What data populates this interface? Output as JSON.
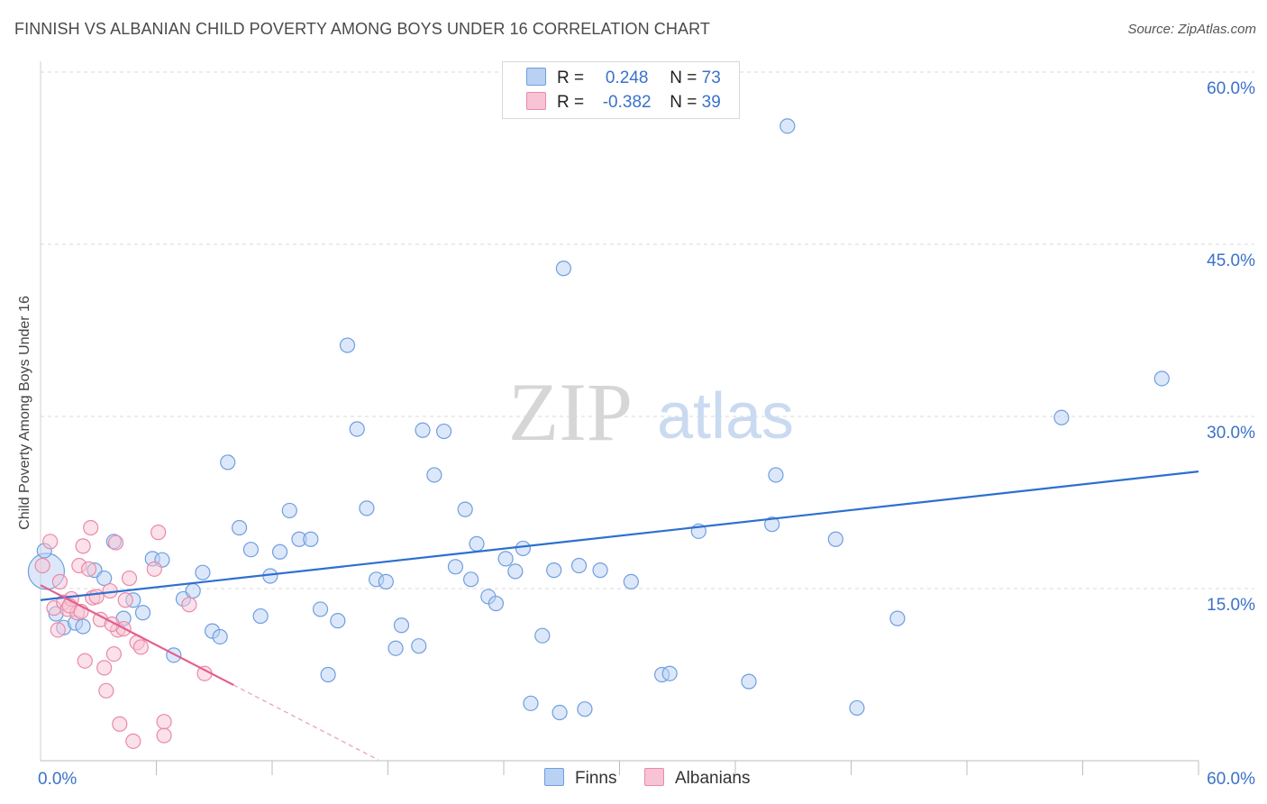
{
  "title": "FINNISH VS ALBANIAN CHILD POVERTY AMONG BOYS UNDER 16 CORRELATION CHART",
  "source": "Source: ZipAtlas.com",
  "watermark": {
    "zip": "ZIP",
    "atlas": "atlas"
  },
  "legend_top": {
    "rows": [
      {
        "r_label": "R =",
        "r_value": "0.248",
        "n_label": "N =",
        "n_value": "73"
      },
      {
        "r_label": "R =",
        "r_value": "-0.382",
        "n_label": "N =",
        "n_value": "39"
      }
    ]
  },
  "colors": {
    "finns_fill": "#b9d1f3",
    "finns_stroke": "#6f9ee0",
    "finns_line": "#2e6fcf",
    "albanians_fill": "#f8c3d4",
    "albanians_stroke": "#e98aa9",
    "albanians_line": "#e35f8c",
    "grid": "#d9d9d9",
    "axis_text": "#3a72c9"
  },
  "chart_data": {
    "type": "scatter",
    "title": "FINNISH VS ALBANIAN CHILD POVERTY AMONG BOYS UNDER 16 CORRELATION CHART",
    "xlabel": "",
    "ylabel": "Child Poverty Among Boys Under 16",
    "xlim": [
      0,
      60
    ],
    "ylim": [
      0,
      60
    ],
    "x_tick_labels": [
      "0.0%",
      "60.0%"
    ],
    "y_tick_labels": [
      "15.0%",
      "30.0%",
      "45.0%",
      "60.0%"
    ],
    "y_ticks": [
      15,
      30,
      45,
      60
    ],
    "legend_position": "bottom-center",
    "series": [
      {
        "name": "Finns",
        "R": 0.248,
        "N": 73,
        "trend": {
          "x0": 0,
          "y0": 14.0,
          "x1": 60,
          "y1": 25.2
        },
        "points": [
          [
            0.3,
            16.5
          ],
          [
            0.8,
            12.8
          ],
          [
            1.2,
            11.6
          ],
          [
            1.8,
            12.0
          ],
          [
            2.2,
            11.7
          ],
          [
            2.8,
            16.6
          ],
          [
            3.3,
            15.9
          ],
          [
            3.8,
            19.1
          ],
          [
            4.3,
            12.4
          ],
          [
            4.8,
            14.0
          ],
          [
            5.3,
            12.9
          ],
          [
            5.8,
            17.6
          ],
          [
            6.3,
            17.5
          ],
          [
            6.9,
            9.2
          ],
          [
            7.4,
            14.1
          ],
          [
            7.9,
            14.8
          ],
          [
            8.4,
            16.4
          ],
          [
            8.9,
            11.3
          ],
          [
            9.3,
            10.8
          ],
          [
            9.7,
            26.0
          ],
          [
            10.3,
            20.3
          ],
          [
            10.9,
            18.4
          ],
          [
            11.4,
            12.6
          ],
          [
            11.9,
            16.1
          ],
          [
            12.4,
            18.2
          ],
          [
            12.9,
            21.8
          ],
          [
            13.4,
            19.3
          ],
          [
            14.0,
            19.3
          ],
          [
            14.5,
            13.2
          ],
          [
            14.9,
            7.5
          ],
          [
            15.4,
            12.2
          ],
          [
            15.9,
            36.2
          ],
          [
            16.4,
            28.9
          ],
          [
            16.9,
            22.0
          ],
          [
            17.4,
            15.8
          ],
          [
            17.9,
            15.6
          ],
          [
            18.4,
            9.8
          ],
          [
            18.7,
            11.8
          ],
          [
            19.6,
            10.0
          ],
          [
            19.8,
            28.8
          ],
          [
            20.4,
            24.9
          ],
          [
            20.9,
            28.7
          ],
          [
            21.5,
            16.9
          ],
          [
            22.0,
            21.9
          ],
          [
            22.3,
            15.8
          ],
          [
            22.6,
            18.9
          ],
          [
            23.2,
            14.3
          ],
          [
            23.6,
            13.7
          ],
          [
            24.1,
            17.6
          ],
          [
            24.6,
            16.5
          ],
          [
            25.0,
            18.5
          ],
          [
            25.4,
            5.0
          ],
          [
            26.0,
            10.9
          ],
          [
            26.6,
            16.6
          ],
          [
            26.9,
            4.2
          ],
          [
            27.1,
            42.9
          ],
          [
            27.9,
            17.0
          ],
          [
            28.2,
            4.5
          ],
          [
            29.0,
            16.6
          ],
          [
            30.6,
            15.6
          ],
          [
            32.2,
            7.5
          ],
          [
            32.6,
            7.6
          ],
          [
            34.1,
            20.0
          ],
          [
            36.7,
            6.9
          ],
          [
            37.9,
            20.6
          ],
          [
            38.1,
            24.9
          ],
          [
            38.7,
            55.3
          ],
          [
            41.2,
            19.3
          ],
          [
            42.3,
            4.6
          ],
          [
            44.4,
            12.4
          ],
          [
            52.9,
            29.9
          ],
          [
            58.1,
            33.3
          ],
          [
            0.2,
            18.3
          ]
        ]
      },
      {
        "name": "Albanians",
        "R": -0.382,
        "N": 39,
        "trend": {
          "x0": 0,
          "y0": 15.3,
          "x1": 10,
          "y1": 6.6,
          "dash_to_x": 17.5
        },
        "points": [
          [
            0.1,
            17.0
          ],
          [
            0.5,
            19.1
          ],
          [
            0.7,
            13.3
          ],
          [
            0.9,
            11.4
          ],
          [
            1.2,
            13.8
          ],
          [
            1.4,
            13.2
          ],
          [
            1.6,
            14.1
          ],
          [
            1.9,
            12.9
          ],
          [
            2.0,
            17.0
          ],
          [
            2.2,
            18.7
          ],
          [
            2.3,
            8.7
          ],
          [
            2.5,
            16.7
          ],
          [
            2.6,
            20.3
          ],
          [
            2.7,
            14.2
          ],
          [
            2.9,
            14.3
          ],
          [
            3.1,
            12.3
          ],
          [
            3.3,
            8.1
          ],
          [
            3.4,
            6.1
          ],
          [
            3.6,
            14.8
          ],
          [
            3.8,
            9.3
          ],
          [
            4.0,
            11.4
          ],
          [
            4.1,
            3.2
          ],
          [
            4.3,
            11.5
          ],
          [
            4.4,
            14.0
          ],
          [
            4.6,
            15.9
          ],
          [
            4.8,
            1.7
          ],
          [
            5.0,
            10.3
          ],
          [
            5.2,
            9.9
          ],
          [
            5.9,
            16.7
          ],
          [
            6.1,
            19.9
          ],
          [
            6.4,
            2.2
          ],
          [
            6.4,
            3.4
          ],
          [
            7.7,
            13.6
          ],
          [
            8.5,
            7.6
          ],
          [
            3.9,
            19.0
          ],
          [
            1.0,
            15.6
          ],
          [
            1.5,
            13.5
          ],
          [
            2.1,
            13.0
          ],
          [
            3.7,
            11.9
          ]
        ]
      }
    ]
  },
  "bottom_legend": [
    {
      "label": "Finns"
    },
    {
      "label": "Albanians"
    }
  ]
}
